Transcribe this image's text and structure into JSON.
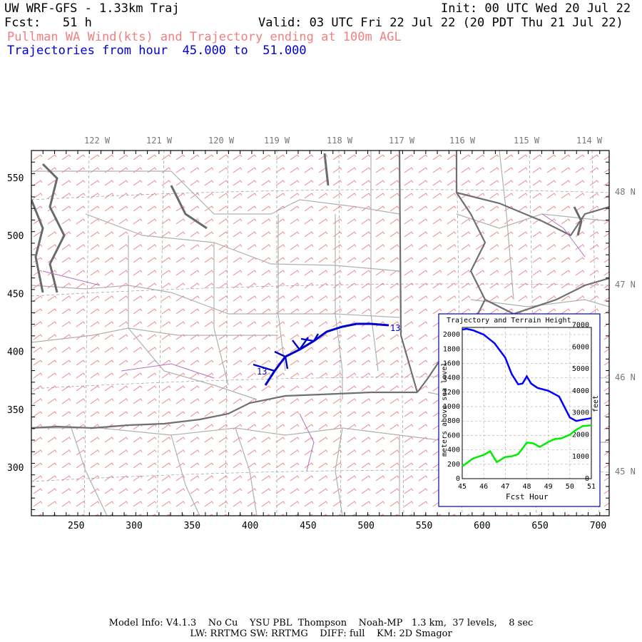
{
  "header": {
    "title": "UW WRF-GFS - 1.33km Traj",
    "init": "Init: 00 UTC Wed 20 Jul 22",
    "fcst": "Fcst:   51 h",
    "valid": "Valid: 03 UTC Fri 22 Jul 22 (20 PDT Thu 21 Jul 22)",
    "subtitle": "Pullman WA Wind(kts) and Trajectory ending at 100m AGL",
    "traj_range": "Trajectories from hour  45.000 to  51.000"
  },
  "map": {
    "lon_labels": [
      "122 W",
      "121 W",
      "120 W",
      "119 W",
      "118 W",
      "117 W",
      "116 W",
      "115 W",
      "114 W"
    ],
    "lat_labels": [
      "48 N",
      "47 N",
      "46 N",
      "45 N"
    ],
    "x_ticks": [
      "250",
      "300",
      "350",
      "400",
      "450",
      "500",
      "550",
      "600",
      "650",
      "700"
    ],
    "y_ticks": [
      "550",
      "500",
      "450",
      "400",
      "350",
      "300"
    ],
    "traj_start_label": "13",
    "traj_end_label": "13",
    "colors": {
      "barb": "#f08080",
      "trajectory": "#0000cc",
      "terrain_line": "#00dd00",
      "state_border": "#707070"
    }
  },
  "inset": {
    "title": "Trajectory and Terrain Height",
    "xlabel": "Fcst Hour",
    "ylabel_left": "meters above sea level",
    "ylabel_right": "feet",
    "x_ticks": [
      "45",
      "46",
      "47",
      "48",
      "49",
      "50",
      "51"
    ],
    "y_left_ticks": [
      "0",
      "200",
      "400",
      "600",
      "800",
      "1000",
      "1200",
      "1400",
      "1600",
      "1800",
      "2000"
    ],
    "y_right_ticks": [
      "0",
      "1000",
      "2000",
      "3000",
      "4000",
      "5000",
      "6000",
      "7000"
    ]
  },
  "chart_data": {
    "type": "line",
    "title": "Trajectory and Terrain Height",
    "xlabel": "Fcst Hour",
    "ylabel": "meters above sea level",
    "xlim": [
      45,
      51
    ],
    "ylim": [
      0,
      2100
    ],
    "grid": true,
    "series": [
      {
        "color": "#0000ff",
        "x": [
          45,
          45.2,
          45.5,
          46,
          46.5,
          47,
          47.3,
          47.6,
          47.8,
          48.0,
          48.2,
          48.5,
          49.0,
          49.5,
          50.0,
          50.3,
          50.6,
          51
        ],
        "y": [
          2070,
          2080,
          2060,
          2000,
          1880,
          1680,
          1450,
          1310,
          1320,
          1420,
          1320,
          1260,
          1220,
          1140,
          850,
          800,
          820,
          840
        ]
      },
      {
        "color": "#00ee00",
        "x": [
          45,
          45.5,
          46,
          46.3,
          46.6,
          47,
          47.3,
          47.6,
          48.0,
          48.3,
          48.6,
          49,
          49.3,
          49.6,
          50,
          50.3,
          50.6,
          51
        ],
        "y": [
          170,
          280,
          330,
          380,
          230,
          300,
          310,
          340,
          500,
          490,
          440,
          510,
          550,
          560,
          610,
          680,
          730,
          740
        ]
      }
    ]
  },
  "footer": {
    "line1": "Model Info: V4.1.3    No Cu    YSU PBL  Thompson    Noah-MP   1.3 km,  37 levels,    8 sec",
    "line2": "LW: RRTMG SW: RRTMG    DIFF: full    KM: 2D Smagor"
  }
}
